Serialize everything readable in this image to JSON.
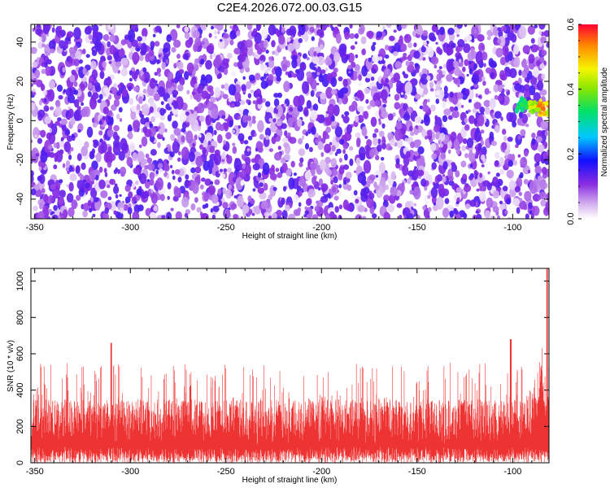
{
  "title": "C2E4.2026.072.00.03.G15",
  "chart_data": [
    {
      "type": "heatmap",
      "name": "spectrogram",
      "xlabel": "Height of straight line (km)",
      "ylabel": "Frequency (Hz)",
      "xlim": [
        -352,
        -81
      ],
      "ylim": [
        -50,
        49
      ],
      "xticks": [
        -350,
        -300,
        -250,
        -200,
        -150,
        -100
      ],
      "yticks": [
        -40,
        -20,
        0,
        20,
        40
      ],
      "colorbar": {
        "label": "Normalized spectral amplitude",
        "range": [
          0.0,
          0.6
        ],
        "ticks": [
          "0.0",
          "0.2",
          "0.4",
          "0.6"
        ]
      },
      "features": [
        {
          "x": -95,
          "y": 8,
          "amplitude": 0.35
        },
        {
          "x": -88,
          "y": 7,
          "amplitude": 0.45
        },
        {
          "x": -84,
          "y": 6,
          "amplitude": 0.55
        }
      ],
      "background_amplitude": [
        0.0,
        0.15
      ]
    },
    {
      "type": "line",
      "name": "snr",
      "xlabel": "Height of straight line (km)",
      "ylabel": "SNR (10 * v/v)",
      "xlim": [
        -352,
        -81
      ],
      "ylim": [
        0,
        1070
      ],
      "xticks": [
        -350,
        -300,
        -250,
        -200,
        -150,
        -100
      ],
      "yticks": [
        0,
        200,
        400,
        600,
        800,
        1000
      ],
      "color": "#ee3333",
      "typical_range": [
        100,
        350
      ],
      "peaks": [
        {
          "x": -310,
          "y": 660
        },
        {
          "x": -101,
          "y": 680
        },
        {
          "x": -82,
          "y": 1070
        }
      ]
    }
  ]
}
